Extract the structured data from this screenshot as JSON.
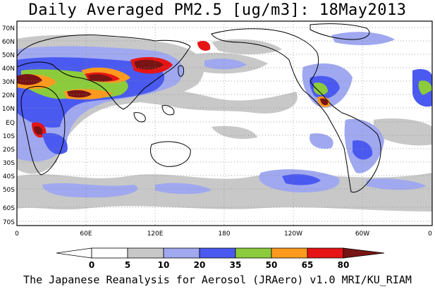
{
  "title": "Daily Averaged PM2.5 [ug/m3]: 18May2013",
  "footer": "The Japanese Reanalysis for Aerosol (JRAero) v1.0 MRI/KU_RIAM",
  "map": {
    "lat_labels": [
      "70N",
      "60N",
      "50N",
      "40N",
      "30N",
      "20N",
      "10N",
      "EQ",
      "10S",
      "20S",
      "30S",
      "40S",
      "50S",
      "60S",
      "70S"
    ],
    "lon_labels": [
      "0",
      "60E",
      "120E",
      "180",
      "120W",
      "60W",
      "0"
    ]
  },
  "colorbar": {
    "ticks": [
      "0",
      "5",
      "10",
      "20",
      "35",
      "50",
      "65",
      "80"
    ],
    "colors": [
      "#ffffff",
      "#c8c8c8",
      "#a0a8f0",
      "#4a5af0",
      "#8ccc3c",
      "#ff9a1e",
      "#e61414",
      "#781414"
    ]
  }
}
